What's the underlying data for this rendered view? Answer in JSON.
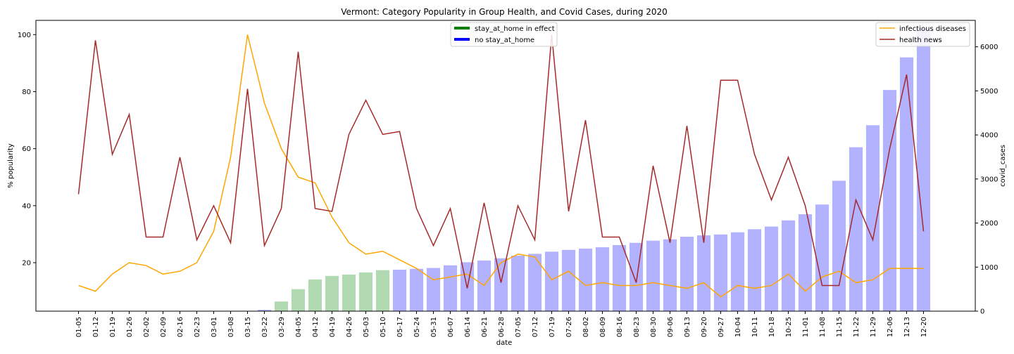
{
  "chart_data": {
    "type": "bar",
    "title": "Vermont: Category Popularity in Group Health, and Covid Cases, during 2020",
    "xlabel": "date",
    "ylabel_left": "% popularity",
    "ylabel_right": "covid_cases",
    "ylim_left": [
      3,
      105
    ],
    "ylim_right": [
      0,
      6600
    ],
    "yticks_left": [
      20,
      40,
      60,
      80,
      100
    ],
    "yticks_right": [
      0,
      1000,
      2000,
      3000,
      4000,
      5000,
      6000
    ],
    "categories": [
      "01-05",
      "01-12",
      "01-19",
      "01-26",
      "02-02",
      "02-09",
      "02-16",
      "02-23",
      "03-01",
      "03-08",
      "03-15",
      "03-22",
      "03-29",
      "04-05",
      "04-12",
      "04-19",
      "04-26",
      "05-03",
      "05-10",
      "05-17",
      "05-24",
      "05-31",
      "06-07",
      "06-14",
      "06-21",
      "06-28",
      "07-05",
      "07-12",
      "07-19",
      "07-26",
      "08-02",
      "08-09",
      "08-16",
      "08-23",
      "08-30",
      "09-06",
      "09-13",
      "09-20",
      "09-27",
      "10-04",
      "10-11",
      "10-18",
      "10-25",
      "11-01",
      "11-08",
      "11-15",
      "11-22",
      "11-29",
      "12-06",
      "12-13",
      "12-20"
    ],
    "covid_cases": [
      0,
      0,
      0,
      0,
      0,
      0,
      0,
      0,
      0,
      0,
      0,
      30,
      220,
      500,
      720,
      800,
      830,
      880,
      930,
      940,
      960,
      980,
      1040,
      1110,
      1150,
      1200,
      1260,
      1300,
      1350,
      1390,
      1420,
      1450,
      1500,
      1550,
      1600,
      1630,
      1690,
      1720,
      1740,
      1790,
      1860,
      1920,
      2060,
      2200,
      2420,
      2960,
      3720,
      4220,
      5020,
      5760,
      6420
    ],
    "stay_at_home": [
      false,
      false,
      false,
      false,
      false,
      false,
      false,
      false,
      false,
      false,
      false,
      false,
      true,
      true,
      true,
      true,
      true,
      true,
      true,
      false,
      false,
      false,
      false,
      false,
      false,
      false,
      false,
      false,
      false,
      false,
      false,
      false,
      false,
      false,
      false,
      false,
      false,
      false,
      false,
      false,
      false,
      false,
      false,
      false,
      false,
      false,
      false,
      false,
      false,
      false,
      false
    ],
    "series": [
      {
        "name": "infectious diseases",
        "color": "#ffa500",
        "values": [
          12,
          10,
          16,
          20,
          19,
          16,
          17,
          20,
          31,
          57,
          100,
          76,
          60,
          50,
          48,
          36,
          27,
          23,
          24,
          21,
          18,
          14,
          15,
          16,
          12,
          20,
          23,
          22,
          14,
          17,
          12,
          13,
          12,
          12,
          13,
          12,
          11,
          13,
          8,
          12,
          11,
          12,
          16,
          10,
          15,
          17,
          13,
          14,
          18,
          18,
          18
        ]
      },
      {
        "name": "health news",
        "color": "#a52a2a",
        "values": [
          44,
          98,
          58,
          72,
          29,
          29,
          57,
          28,
          40,
          27,
          81,
          26,
          39,
          94,
          39,
          38,
          65,
          77,
          65,
          66,
          39,
          26,
          39,
          11,
          41,
          13,
          40,
          28,
          100,
          38,
          70,
          29,
          29,
          13,
          54,
          27,
          68,
          27,
          84,
          84,
          58,
          42,
          57,
          40,
          12,
          12,
          42,
          28,
          60,
          86,
          31
        ]
      }
    ],
    "legend_right": {
      "position": "top-right",
      "entries": [
        "infectious diseases",
        "health news"
      ]
    },
    "legend_center": {
      "position": "top-center",
      "entries": [
        {
          "label": "stay_at_home in effect",
          "color": "#008000"
        },
        {
          "label": "no stay_at_home",
          "color": "#0000ff"
        }
      ]
    },
    "bar_colors": {
      "stay": "#b2dab2",
      "nostay": "#b2b2ff"
    },
    "grid": false
  }
}
